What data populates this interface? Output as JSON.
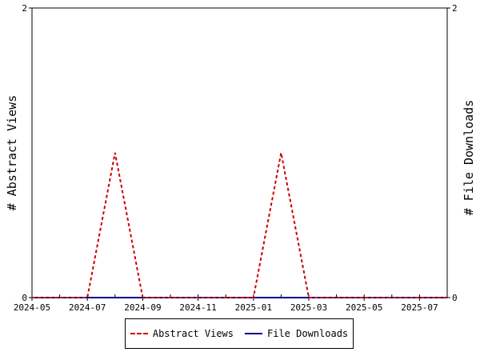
{
  "chart_data": {
    "type": "line",
    "x": [
      "2024-05",
      "2024-06",
      "2024-07",
      "2024-08",
      "2024-09",
      "2024-10",
      "2024-11",
      "2024-12",
      "2025-01",
      "2025-02",
      "2025-03",
      "2025-04",
      "2025-05",
      "2025-06",
      "2025-07",
      "2025-08"
    ],
    "x_tick_labels": [
      "2024-05",
      "2024-07",
      "2024-09",
      "2024-11",
      "2025-01",
      "2025-03",
      "2025-05",
      "2025-07"
    ],
    "series": [
      {
        "name": "Abstract Views",
        "axis": "left",
        "style": "dashed",
        "color": "#cc0000",
        "values": [
          0,
          0,
          0,
          1,
          0,
          0,
          0,
          0,
          0,
          1,
          0,
          0,
          0,
          0,
          0,
          0
        ]
      },
      {
        "name": "File Downloads",
        "axis": "right",
        "style": "solid",
        "color": "#00008b",
        "values": [
          0,
          0,
          0,
          0,
          0,
          0,
          0,
          0,
          0,
          0,
          0,
          0,
          0,
          0,
          0,
          0
        ]
      }
    ],
    "ylabel_left": "# Abstract Views",
    "ylabel_right": "# File Downloads",
    "ylim_left": [
      0,
      2
    ],
    "ylim_right": [
      0,
      2
    ],
    "y_tick_labels_left": [
      "0",
      "2"
    ],
    "y_tick_labels_right": [
      "0",
      "2"
    ],
    "grid": false,
    "legend_position": "bottom"
  }
}
